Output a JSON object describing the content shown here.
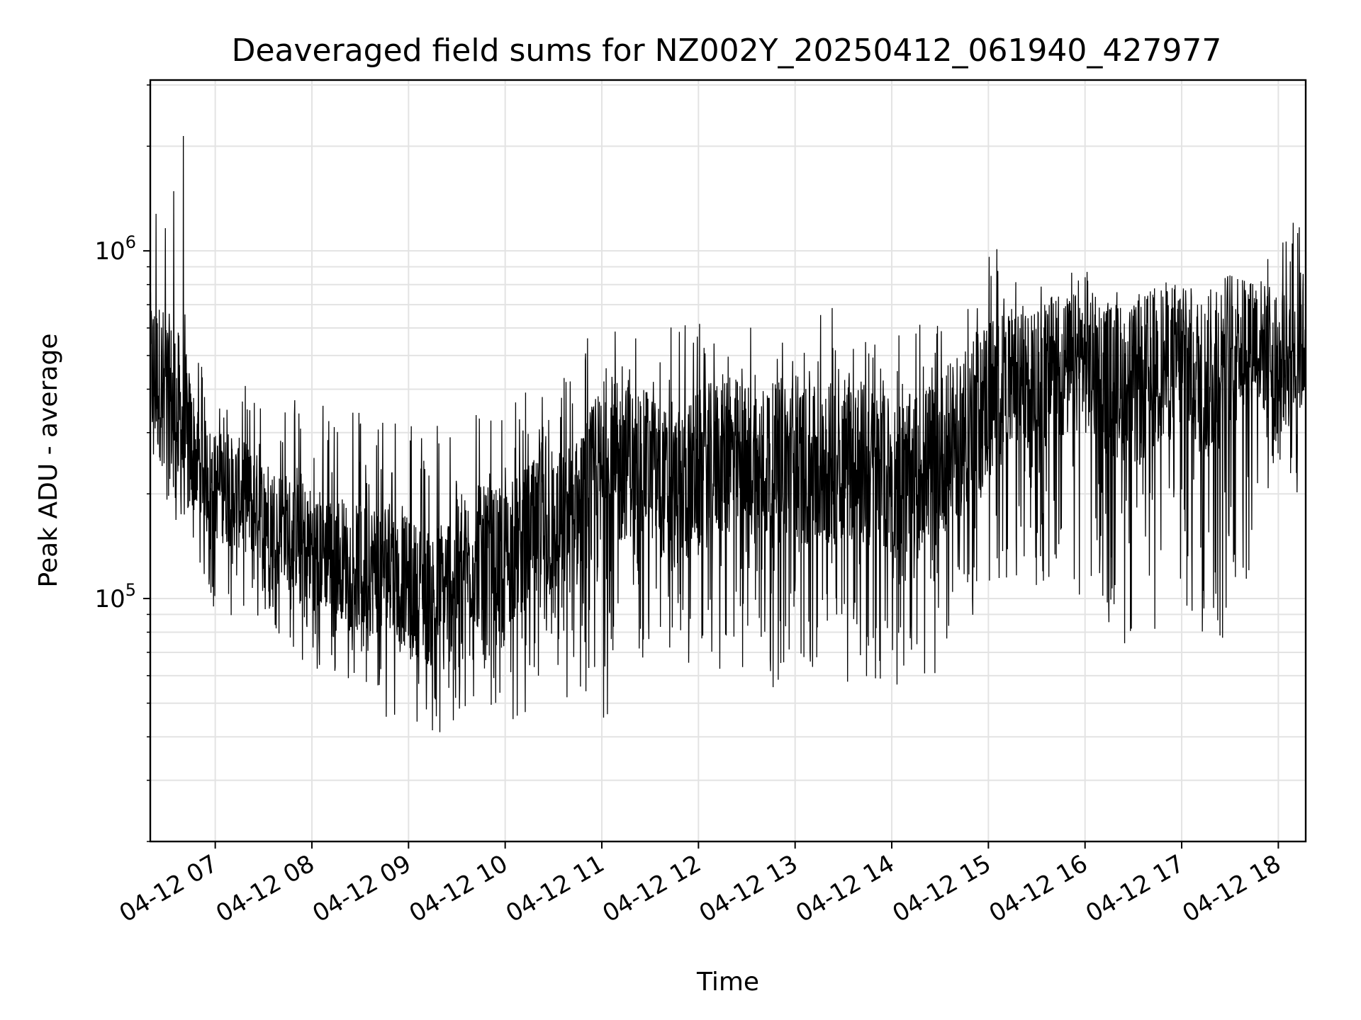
{
  "chart_data": {
    "type": "line",
    "title": "Deaveraged field sums for NZ002Y_20250412_061940_427977",
    "xlabel": "Time",
    "ylabel": "Peak ADU - average",
    "yscale": "log",
    "ylim": [
      20000,
      3100000
    ],
    "xlim": [
      "2025-04-12 06:19:40",
      "2025-04-12 18:17:00"
    ],
    "xticks": [
      "04-12 07",
      "04-12 08",
      "04-12 09",
      "04-12 10",
      "04-12 11",
      "04-12 12",
      "04-12 13",
      "04-12 14",
      "04-12 15",
      "04-12 16",
      "04-12 17",
      "04-12 18"
    ],
    "yticks": [
      {
        "base": "10",
        "exponent": "5",
        "value": 100000
      },
      {
        "base": "10",
        "exponent": "6",
        "value": 1000000
      }
    ],
    "grid": true,
    "line_color": "#000000",
    "grid_color": "#e3e3e3",
    "series": [
      {
        "x": [
          "2025-04-12 06:20",
          "2025-04-12 06:30",
          "2025-04-12 06:40",
          "2025-04-12 06:50",
          "2025-04-12 07:00",
          "2025-04-12 07:15",
          "2025-04-12 07:30",
          "2025-04-12 07:45",
          "2025-04-12 08:00",
          "2025-04-12 08:15",
          "2025-04-12 08:30",
          "2025-04-12 08:45",
          "2025-04-12 09:00",
          "2025-04-12 09:15",
          "2025-04-12 09:30",
          "2025-04-12 09:45",
          "2025-04-12 10:00",
          "2025-04-12 10:15",
          "2025-04-12 10:30",
          "2025-04-12 10:45",
          "2025-04-12 11:00",
          "2025-04-12 11:15",
          "2025-04-12 11:30",
          "2025-04-12 11:45",
          "2025-04-12 12:00",
          "2025-04-12 12:15",
          "2025-04-12 12:30",
          "2025-04-12 12:45",
          "2025-04-12 13:00",
          "2025-04-12 13:15",
          "2025-04-12 13:30",
          "2025-04-12 13:45",
          "2025-04-12 14:00",
          "2025-04-12 14:15",
          "2025-04-12 14:30",
          "2025-04-12 14:45",
          "2025-04-12 15:00",
          "2025-04-12 15:15",
          "2025-04-12 15:30",
          "2025-04-12 15:45",
          "2025-04-12 16:00",
          "2025-04-12 16:15",
          "2025-04-12 16:30",
          "2025-04-12 16:45",
          "2025-04-12 17:00",
          "2025-04-12 17:15",
          "2025-04-12 17:30",
          "2025-04-12 17:45",
          "2025-04-12 18:00",
          "2025-04-12 18:15"
        ],
        "values": [
          450000,
          400000,
          300000,
          250000,
          210000,
          200000,
          180000,
          160000,
          140000,
          135000,
          120000,
          125000,
          110000,
          100000,
          120000,
          135000,
          130000,
          150000,
          160000,
          175000,
          210000,
          250000,
          240000,
          200000,
          230000,
          260000,
          250000,
          240000,
          250000,
          230000,
          260000,
          240000,
          220000,
          230000,
          260000,
          300000,
          380000,
          410000,
          420000,
          450000,
          480000,
          430000,
          400000,
          460000,
          500000,
          420000,
          520000,
          580000,
          450000,
          550000
        ],
        "min_envelope": [
          220000,
          170000,
          150000,
          120000,
          90000,
          80000,
          85000,
          75000,
          60000,
          60000,
          55000,
          45000,
          48000,
          38000,
          42000,
          52000,
          46000,
          42000,
          50000,
          45000,
          40000,
          60000,
          70000,
          65000,
          62000,
          60000,
          58000,
          55000,
          60000,
          56000,
          58000,
          55000,
          56000,
          58000,
          60000,
          70000,
          100000,
          120000,
          100000,
          110000,
          100000,
          80000,
          70000,
          70000,
          90000,
          70000,
          65000,
          110000,
          200000,
          200000
        ],
        "max_envelope": [
          2300000,
          1800000,
          2400000,
          520000,
          450000,
          420000,
          400000,
          380000,
          380000,
          360000,
          380000,
          360000,
          330000,
          320000,
          350000,
          380000,
          360000,
          400000,
          430000,
          450000,
          850000,
          600000,
          620000,
          650000,
          700000,
          650000,
          620000,
          640000,
          650000,
          680000,
          700000,
          650000,
          600000,
          620000,
          680000,
          760000,
          1300000,
          900000,
          880000,
          960000,
          880000,
          820000,
          860000,
          880000,
          850000,
          820000,
          850000,
          800000,
          1500000,
          1800000
        ]
      }
    ]
  }
}
